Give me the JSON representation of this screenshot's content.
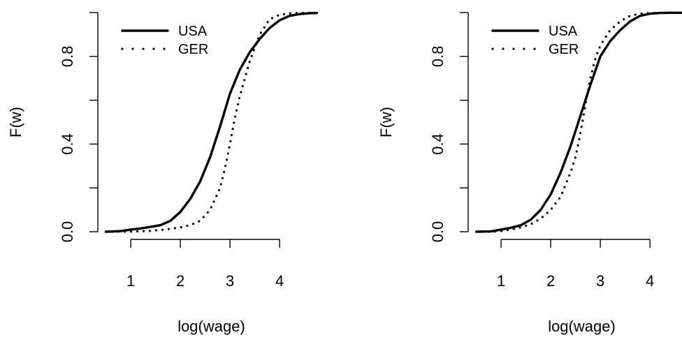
{
  "chart_data": [
    {
      "type": "line",
      "xlabel": "log(wage)",
      "ylabel": "F(w)",
      "xlim": [
        0.45,
        4.8
      ],
      "ylim": [
        0.0,
        1.0
      ],
      "xticks": [
        1,
        2,
        3,
        4
      ],
      "xtick_labels": [
        "1",
        "2",
        "3",
        "4"
      ],
      "yticks": [
        0.0,
        0.2,
        0.4,
        0.6,
        0.8,
        1.0
      ],
      "ytick_labels": [
        "0.0",
        "",
        "0.4",
        "",
        "0.8",
        ""
      ],
      "grid": false,
      "legend": "top-left",
      "series": [
        {
          "name": "USA",
          "style": "solid",
          "x": [
            0.5,
            0.8,
            1.0,
            1.2,
            1.4,
            1.6,
            1.8,
            2.0,
            2.2,
            2.4,
            2.6,
            2.8,
            3.0,
            3.2,
            3.4,
            3.6,
            3.8,
            4.0,
            4.2,
            4.4,
            4.6,
            4.75
          ],
          "y": [
            0.0,
            0.003,
            0.01,
            0.015,
            0.022,
            0.03,
            0.05,
            0.09,
            0.15,
            0.23,
            0.34,
            0.48,
            0.63,
            0.74,
            0.82,
            0.88,
            0.93,
            0.965,
            0.985,
            0.993,
            0.997,
            0.998
          ]
        },
        {
          "name": "GER",
          "style": "dotted",
          "x": [
            0.5,
            0.8,
            1.0,
            1.2,
            1.4,
            1.6,
            1.8,
            2.0,
            2.2,
            2.4,
            2.6,
            2.8,
            2.9,
            3.0,
            3.1,
            3.2,
            3.4,
            3.6,
            3.8,
            4.0,
            4.2,
            4.4,
            4.6,
            4.75
          ],
          "y": [
            0.0,
            0.0,
            0.001,
            0.002,
            0.004,
            0.008,
            0.013,
            0.02,
            0.03,
            0.05,
            0.1,
            0.2,
            0.29,
            0.4,
            0.52,
            0.62,
            0.78,
            0.9,
            0.97,
            0.99,
            0.996,
            0.998,
            0.999,
            0.999
          ]
        }
      ]
    },
    {
      "type": "line",
      "xlabel": "log(wage)",
      "ylabel": "F(w)",
      "xlim": [
        0.45,
        4.8
      ],
      "ylim": [
        0.0,
        1.0
      ],
      "xticks": [
        1,
        2,
        3,
        4
      ],
      "xtick_labels": [
        "1",
        "2",
        "3",
        "4"
      ],
      "yticks": [
        0.0,
        0.2,
        0.4,
        0.6,
        0.8,
        1.0
      ],
      "ytick_labels": [
        "0.0",
        "",
        "0.4",
        "",
        "0.8",
        ""
      ],
      "grid": false,
      "legend": "top-left",
      "series": [
        {
          "name": "USA",
          "style": "solid",
          "x": [
            0.5,
            0.8,
            1.0,
            1.2,
            1.4,
            1.6,
            1.8,
            2.0,
            2.2,
            2.4,
            2.6,
            2.8,
            3.0,
            3.2,
            3.4,
            3.6,
            3.8,
            4.0,
            4.2,
            4.4,
            4.6,
            4.75
          ],
          "y": [
            0.0,
            0.002,
            0.01,
            0.018,
            0.03,
            0.055,
            0.1,
            0.17,
            0.27,
            0.39,
            0.53,
            0.67,
            0.8,
            0.87,
            0.92,
            0.96,
            0.985,
            0.995,
            0.998,
            0.999,
            0.999,
            0.999
          ]
        },
        {
          "name": "GER",
          "style": "dotted",
          "x": [
            0.5,
            0.8,
            1.0,
            1.2,
            1.4,
            1.6,
            1.8,
            2.0,
            2.2,
            2.4,
            2.5,
            2.6,
            2.7,
            2.8,
            2.9,
            3.0,
            3.2,
            3.4,
            3.6,
            3.8,
            4.0,
            4.2,
            4.4,
            4.75
          ],
          "y": [
            0.0,
            0.0,
            0.003,
            0.01,
            0.02,
            0.035,
            0.06,
            0.1,
            0.16,
            0.27,
            0.34,
            0.45,
            0.58,
            0.7,
            0.79,
            0.85,
            0.92,
            0.96,
            0.985,
            0.995,
            0.998,
            0.999,
            0.999,
            0.999
          ]
        }
      ]
    }
  ]
}
